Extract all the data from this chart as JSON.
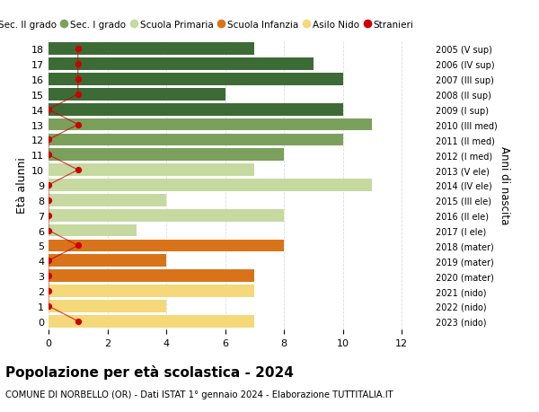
{
  "ages": [
    18,
    17,
    16,
    15,
    14,
    13,
    12,
    11,
    10,
    9,
    8,
    7,
    6,
    5,
    4,
    3,
    2,
    1,
    0
  ],
  "right_labels": [
    "2005 (V sup)",
    "2006 (IV sup)",
    "2007 (III sup)",
    "2008 (II sup)",
    "2009 (I sup)",
    "2010 (III med)",
    "2011 (II med)",
    "2012 (I med)",
    "2013 (V ele)",
    "2014 (IV ele)",
    "2015 (III ele)",
    "2016 (II ele)",
    "2017 (I ele)",
    "2018 (mater)",
    "2019 (mater)",
    "2020 (mater)",
    "2021 (nido)",
    "2022 (nido)",
    "2023 (nido)"
  ],
  "bar_values": [
    7,
    9,
    10,
    6,
    10,
    11,
    10,
    8,
    7,
    11,
    4,
    8,
    3,
    8,
    4,
    7,
    7,
    4,
    7
  ],
  "stranieri_x": [
    1,
    1,
    1,
    1,
    0,
    1,
    0,
    0,
    1,
    0,
    0,
    0,
    0,
    1,
    0,
    0,
    0,
    0,
    1
  ],
  "bar_colors": [
    "#3d6b35",
    "#3d6b35",
    "#3d6b35",
    "#3d6b35",
    "#3d6b35",
    "#7ba05b",
    "#7ba05b",
    "#7ba05b",
    "#c5d9a0",
    "#c5d9a0",
    "#c5d9a0",
    "#c5d9a0",
    "#c5d9a0",
    "#d9731a",
    "#d9731a",
    "#d9731a",
    "#f5d87a",
    "#f5d87a",
    "#f5d87a"
  ],
  "legend_labels": [
    "Sec. II grado",
    "Sec. I grado",
    "Scuola Primaria",
    "Scuola Infanzia",
    "Asilo Nido",
    "Stranieri"
  ],
  "legend_colors": [
    "#3d6b35",
    "#7ba05b",
    "#c5d9a0",
    "#d9731a",
    "#f5d87a",
    "#cc0000"
  ],
  "stranieri_color": "#cc0000",
  "title": "Popolazione per età scolastica - 2024",
  "subtitle": "COMUNE DI NORBELLO (OR) - Dati ISTAT 1° gennaio 2024 - Elaborazione TUTTITALIA.IT",
  "ylabel": "Età alunni",
  "right_ylabel": "Anni di nascita",
  "xlim": [
    0,
    13
  ],
  "xticks": [
    0,
    2,
    4,
    6,
    8,
    10,
    12
  ],
  "background_color": "#ffffff",
  "grid_color": "#dddddd",
  "bar_height": 0.82
}
